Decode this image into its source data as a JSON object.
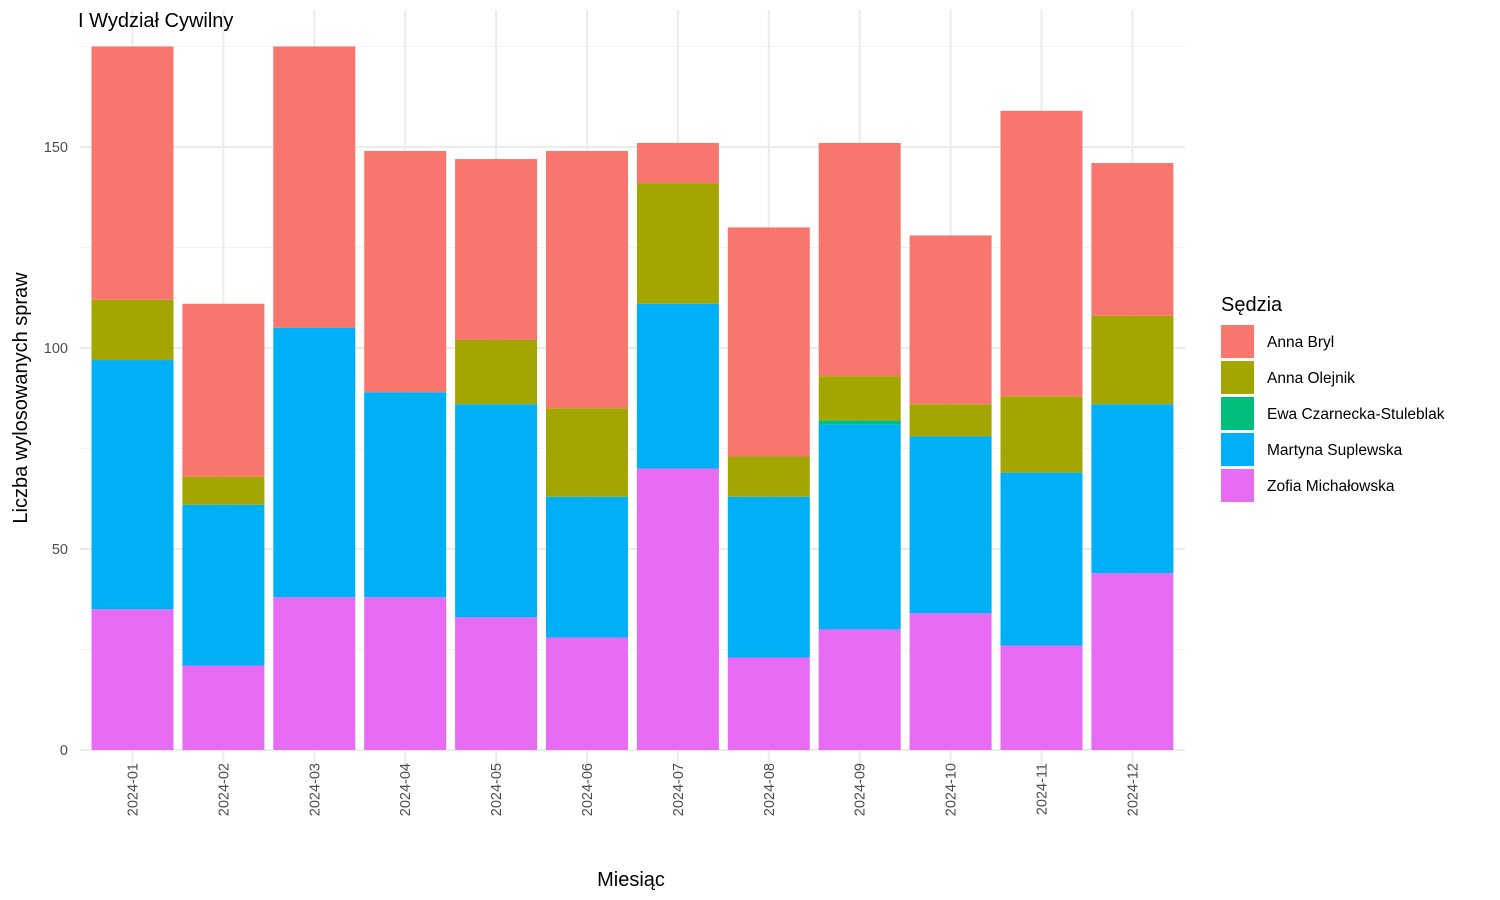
{
  "chart_data": {
    "type": "bar",
    "stacked": true,
    "title": "I Wydział Cywilny",
    "xlabel": "Miesiąc",
    "ylabel": "Liczba wylosowanych spraw",
    "ylim": [
      0,
      175
    ],
    "yticks": [
      0,
      50,
      100,
      150
    ],
    "grid": true,
    "legend_title": "Sędzia",
    "legend_position": "right",
    "categories": [
      "2024-01",
      "2024-02",
      "2024-03",
      "2024-04",
      "2024-05",
      "2024-06",
      "2024-07",
      "2024-08",
      "2024-09",
      "2024-10",
      "2024-11",
      "2024-12"
    ],
    "series": [
      {
        "name": "Anna Bryl",
        "color": "#F8766D",
        "values": [
          63,
          43,
          70,
          60,
          45,
          64,
          10,
          57,
          58,
          42,
          71,
          38
        ]
      },
      {
        "name": "Anna Olejnik",
        "color": "#A3A500",
        "values": [
          15,
          7,
          0,
          0,
          16,
          22,
          30,
          10,
          11,
          8,
          19,
          22
        ]
      },
      {
        "name": "Ewa Czarnecka-Stuleblak",
        "color": "#00BF7D",
        "values": [
          0,
          0,
          0,
          0,
          0,
          0,
          0,
          0,
          1,
          0,
          0,
          0
        ]
      },
      {
        "name": "Martyna Suplewska",
        "color": "#00B0F6",
        "values": [
          62,
          40,
          67,
          51,
          53,
          35,
          41,
          40,
          51,
          44,
          43,
          42
        ]
      },
      {
        "name": "Zofia Michałowska",
        "color": "#E76BF3",
        "values": [
          35,
          21,
          38,
          38,
          33,
          28,
          70,
          23,
          30,
          34,
          26,
          44
        ]
      }
    ]
  }
}
